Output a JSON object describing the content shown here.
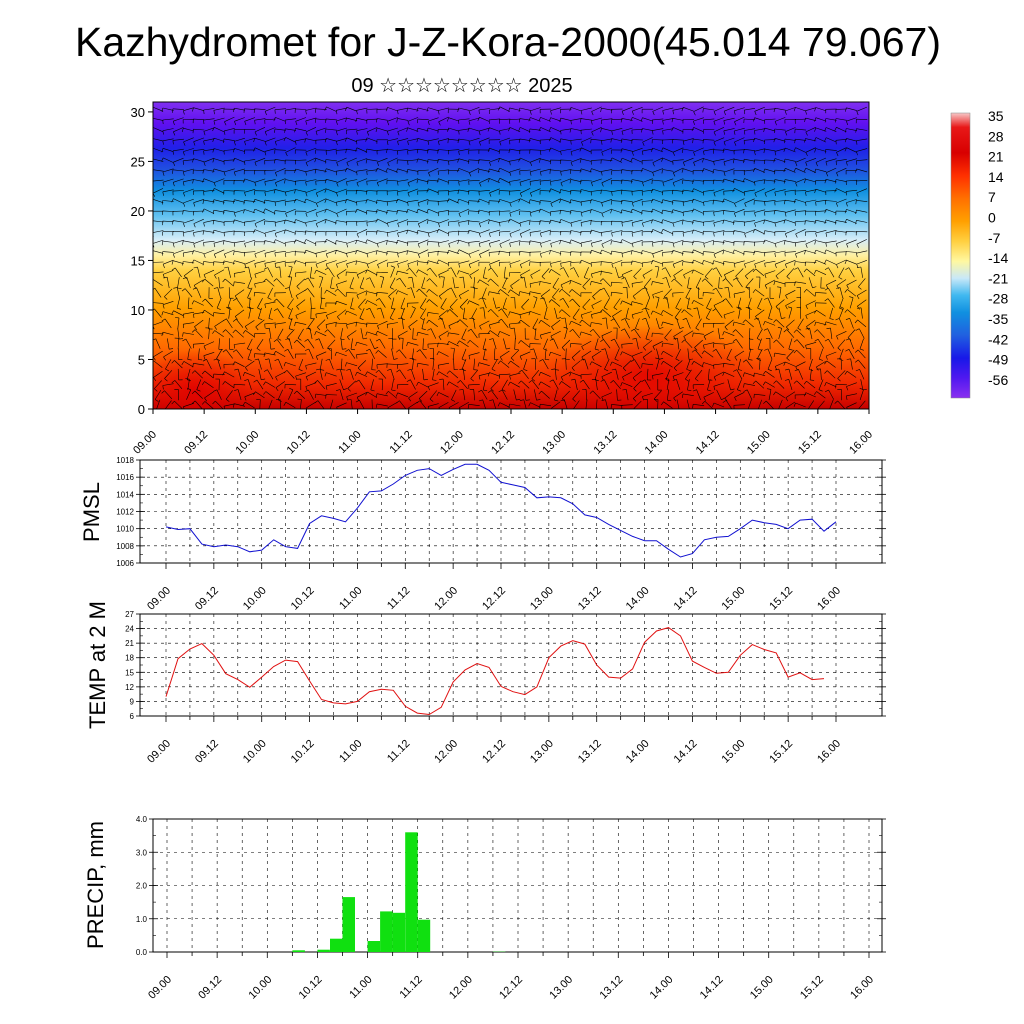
{
  "header": {
    "title": "Kazhydromet for J-Z-Kora-2000(45.014 79.067)",
    "subtitle": "09 ☆☆☆☆☆☆☆☆ 2025"
  },
  "chart_data": [
    {
      "type": "heatmap",
      "name": "cross-section",
      "xlabel": "",
      "ylabel": "",
      "x_tick_labels": [
        "09.00",
        "09.12",
        "10.00",
        "10.12",
        "11.00",
        "11.12",
        "12.00",
        "12.12",
        "13.00",
        "13.12",
        "14.00",
        "14.12",
        "15.00",
        "15.12",
        "16.00"
      ],
      "ylim": [
        0,
        31
      ],
      "y_ticks": [
        0,
        5,
        10,
        15,
        20,
        25,
        30
      ],
      "colorbar": {
        "labels": [
          "35",
          "28",
          "21",
          "14",
          "7",
          "0",
          "-7",
          "-14",
          "-21",
          "-28",
          "-35",
          "-42",
          "-49",
          "-56"
        ]
      },
      "overlay": "wind barbs",
      "description_values": "temperature field warm (>20) near surface, cold (<-56) aloft; 0 isotherm near level 15"
    },
    {
      "type": "line",
      "name": "pmsl",
      "ylabel": "PMSL",
      "ylim": [
        1006,
        1018
      ],
      "y_ticks": [
        1006,
        1008,
        1010,
        1012,
        1014,
        1016,
        1018
      ],
      "x_tick_labels": [
        "09.00",
        "09.12",
        "10.00",
        "10.12",
        "11.00",
        "11.12",
        "12.00",
        "12.12",
        "13.00",
        "13.12",
        "14.00",
        "14.12",
        "15.00",
        "15.12",
        "16.00"
      ],
      "color": "#1010d0",
      "series": [
        {
          "values": [
            1010.2,
            1009.9,
            1010.0,
            1008.2,
            1007.9,
            1008.1,
            1007.9,
            1007.3,
            1007.5,
            1008.7,
            1007.9,
            1007.7,
            1010.6,
            1011.5,
            1011.2,
            1010.8,
            1012.4,
            1014.3,
            1014.4,
            1015.2,
            1016.2,
            1016.8,
            1017.0,
            1016.2,
            1016.9,
            1017.5,
            1017.5,
            1016.8,
            1015.4,
            1015.1,
            1014.8,
            1013.6,
            1013.7,
            1013.6,
            1012.9,
            1011.6,
            1011.3,
            1010.5,
            1009.8,
            1009.1,
            1008.6,
            1008.6,
            1007.6,
            1006.7,
            1007.1,
            1008.7,
            1009.0,
            1009.1,
            1010.0,
            1011.0,
            1010.7,
            1010.5,
            1010.0,
            1011.0,
            1011.1,
            1009.7,
            1010.8
          ]
        }
      ]
    },
    {
      "type": "line",
      "name": "temp2m",
      "ylabel": "TEMP at 2 M",
      "ylim": [
        6,
        27
      ],
      "y_ticks": [
        6,
        9,
        12,
        15,
        18,
        21,
        24,
        27
      ],
      "x_tick_labels": [
        "09.00",
        "09.12",
        "10.00",
        "10.12",
        "11.00",
        "11.12",
        "12.00",
        "12.12",
        "13.00",
        "13.12",
        "14.00",
        "14.12",
        "15.00",
        "15.12",
        "16.00"
      ],
      "color": "#e01010",
      "series": [
        {
          "values": [
            10.0,
            17.8,
            19.8,
            20.9,
            18.5,
            14.7,
            13.5,
            11.9,
            14.0,
            16.2,
            17.5,
            17.2,
            13.2,
            9.4,
            8.7,
            8.5,
            9.0,
            11.0,
            11.5,
            11.3,
            8.0,
            6.6,
            6.3,
            7.8,
            13.0,
            15.5,
            16.8,
            16.0,
            12.1,
            11.0,
            10.4,
            12.0,
            18.0,
            20.4,
            21.5,
            20.8,
            16.5,
            14.0,
            13.8,
            15.7,
            21.2,
            23.5,
            24.2,
            22.5,
            17.3,
            16.0,
            14.8,
            15.0,
            18.5,
            20.7,
            19.7,
            19.0,
            14.0,
            14.9,
            13.5,
            13.7
          ]
        }
      ]
    },
    {
      "type": "bar",
      "name": "precip",
      "ylabel": "PRECIP, mm",
      "ylim": [
        0,
        4
      ],
      "y_tick_labels": [
        "0.0",
        "1.0",
        "2.0",
        "3.0",
        "4.0"
      ],
      "x_tick_labels": [
        "09.00",
        "09.12",
        "10.00",
        "10.12",
        "11.00",
        "11.12",
        "12.00",
        "12.12",
        "13.00",
        "13.12",
        "14.00",
        "14.12",
        "15.00",
        "15.12",
        "16.00"
      ],
      "color": "#10e010",
      "values": [
        0,
        0,
        0,
        0,
        0,
        0,
        0,
        0,
        0,
        0,
        0.05,
        0,
        0.07,
        0.4,
        1.65,
        0,
        0.33,
        1.22,
        1.18,
        3.6,
        0.97,
        0,
        0,
        0,
        0,
        0,
        0.01,
        0,
        0,
        0,
        0,
        0,
        0,
        0,
        0,
        0,
        0,
        0,
        0,
        0,
        0,
        0,
        0,
        0,
        0,
        0,
        0,
        0,
        0,
        0,
        0,
        0,
        0,
        0,
        0,
        0
      ]
    }
  ]
}
